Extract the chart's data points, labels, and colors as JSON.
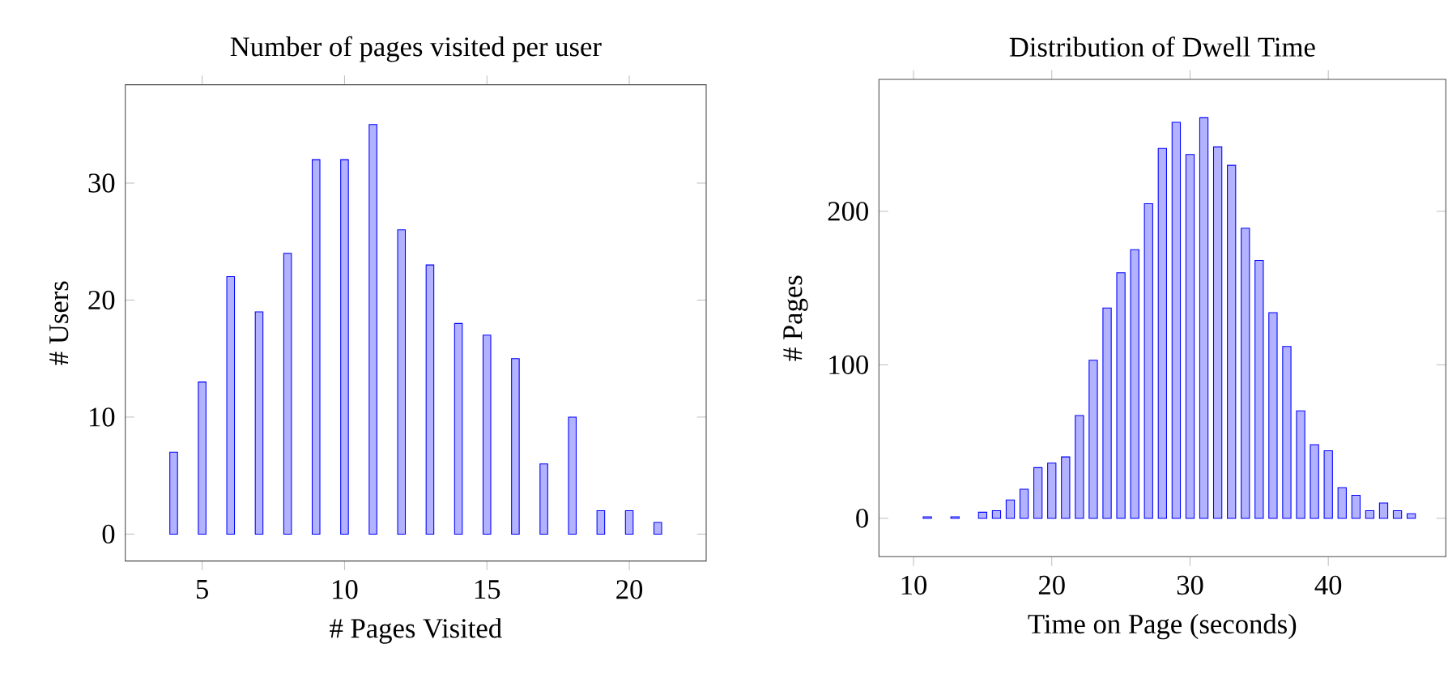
{
  "chart_data": [
    {
      "type": "bar",
      "title": "Number of pages visited per user",
      "xlabel": "# Pages Visited",
      "ylabel": "# Users",
      "x": [
        4,
        5,
        6,
        7,
        8,
        9,
        10,
        11,
        12,
        13,
        14,
        15,
        16,
        17,
        18,
        19,
        20,
        21
      ],
      "values": [
        7,
        13,
        22,
        19,
        24,
        32,
        32,
        35,
        26,
        23,
        18,
        17,
        15,
        6,
        10,
        2,
        2,
        1
      ],
      "color": "#0000ff",
      "xlim": [
        2.3,
        22.7
      ],
      "ylim": [
        -2.3,
        38.4
      ],
      "xticks": [
        5,
        10,
        15,
        20
      ],
      "yticks": [
        0,
        10,
        20,
        30
      ]
    },
    {
      "type": "bar",
      "title": "Distribution of Dwell Time",
      "xlabel": "Time on Page (seconds)",
      "ylabel": "# Pages",
      "x": [
        11,
        13,
        15,
        16,
        17,
        18,
        19,
        20,
        21,
        22,
        23,
        24,
        25,
        26,
        27,
        28,
        29,
        30,
        31,
        32,
        33,
        34,
        35,
        36,
        37,
        38,
        39,
        40,
        41,
        42,
        43,
        44,
        45,
        46
      ],
      "values": [
        1,
        1,
        4,
        5,
        12,
        19,
        33,
        36,
        40,
        67,
        103,
        137,
        160,
        175,
        205,
        241,
        258,
        237,
        261,
        242,
        230,
        189,
        168,
        134,
        112,
        70,
        48,
        44,
        20,
        15,
        5,
        10,
        5,
        3
      ],
      "color": "#0000ff",
      "xlim": [
        7.5,
        48.5
      ],
      "ylim": [
        -25,
        286
      ],
      "xticks": [
        10,
        20,
        30,
        40
      ],
      "yticks": [
        0,
        100,
        200
      ]
    }
  ]
}
